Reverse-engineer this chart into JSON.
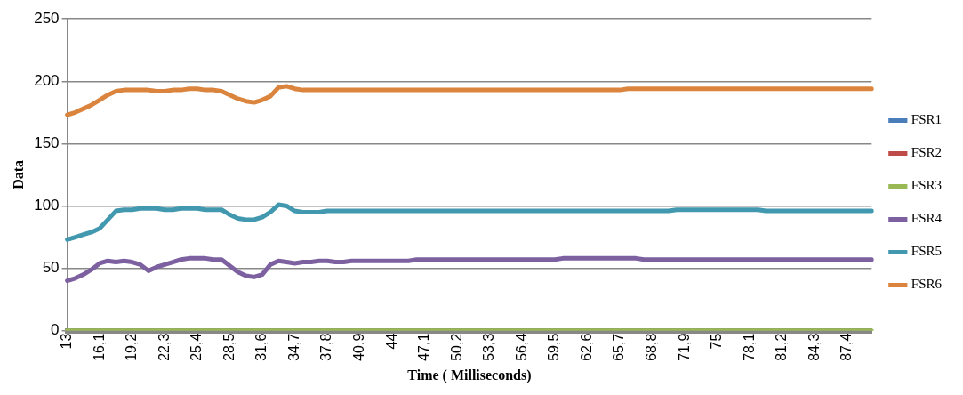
{
  "chart_data": {
    "type": "line",
    "xlabel": "Time ( Milliseconds)",
    "ylabel": "Data",
    "categories": [
      "13",
      null,
      null,
      null,
      "16,1",
      null,
      null,
      null,
      "19,2",
      null,
      null,
      null,
      "22,3",
      null,
      null,
      null,
      "25,4",
      null,
      null,
      null,
      "28,5",
      null,
      null,
      null,
      "31,6",
      null,
      null,
      null,
      "34,7",
      null,
      null,
      null,
      "37,8",
      null,
      null,
      null,
      "40,9",
      null,
      null,
      null,
      "44",
      null,
      null,
      null,
      "47,1",
      null,
      null,
      null,
      "50,2",
      null,
      null,
      null,
      "53,3",
      null,
      null,
      null,
      "56,4",
      null,
      null,
      null,
      "59,5",
      null,
      null,
      null,
      "62,6",
      null,
      null,
      null,
      "65,7",
      null,
      null,
      null,
      "68,8",
      null,
      null,
      null,
      "71,9",
      null,
      null,
      null,
      "75",
      null,
      null,
      null,
      "78,1",
      null,
      null,
      null,
      "81,2",
      null,
      null,
      null,
      "84,3",
      null,
      null,
      null,
      "87,4",
      null,
      null,
      null
    ],
    "series": [
      {
        "name": "FSR1",
        "color": "#4a7ebb",
        "values": [
          null,
          null,
          null,
          null,
          null,
          null,
          null,
          null,
          null,
          null,
          null,
          null,
          null,
          null,
          null,
          null,
          null,
          null,
          null,
          null,
          null,
          null,
          null,
          null,
          null,
          null,
          null,
          null,
          null,
          null,
          null,
          null,
          null,
          null,
          null,
          null,
          null,
          null,
          null,
          null,
          null,
          null,
          null,
          null,
          null,
          null,
          null,
          null,
          null,
          null,
          null,
          null,
          null,
          null,
          null,
          null,
          null,
          null,
          null,
          null,
          null,
          null,
          null,
          null,
          null,
          null,
          null,
          null,
          null,
          null,
          null,
          null,
          null,
          null,
          null,
          null,
          null,
          null,
          null,
          null,
          null,
          null,
          null,
          null,
          null,
          null,
          null,
          null,
          null,
          null,
          null,
          null,
          null,
          null,
          null,
          null,
          null,
          null,
          null,
          null
        ]
      },
      {
        "name": "FSR2",
        "color": "#be4b48",
        "values": [
          null,
          null,
          null,
          null,
          null,
          null,
          null,
          null,
          null,
          null,
          null,
          null,
          null,
          null,
          null,
          null,
          null,
          null,
          null,
          null,
          null,
          null,
          null,
          null,
          null,
          null,
          null,
          null,
          null,
          null,
          null,
          null,
          null,
          null,
          null,
          null,
          null,
          null,
          null,
          null,
          null,
          null,
          null,
          null,
          null,
          null,
          null,
          null,
          null,
          null,
          null,
          null,
          null,
          null,
          null,
          null,
          null,
          null,
          null,
          null,
          null,
          null,
          null,
          null,
          null,
          null,
          null,
          null,
          null,
          null,
          null,
          null,
          null,
          null,
          null,
          null,
          null,
          null,
          null,
          null,
          null,
          null,
          null,
          null,
          null,
          null,
          null,
          null,
          null,
          null,
          null,
          null,
          null,
          null,
          null,
          null,
          null,
          null,
          null,
          null
        ]
      },
      {
        "name": "FSR3",
        "color": "#98b954",
        "values": [
          0,
          0,
          0,
          0,
          0,
          0,
          0,
          0,
          0,
          0,
          0,
          0,
          0,
          0,
          0,
          0,
          0,
          0,
          0,
          0,
          0,
          0,
          0,
          0,
          0,
          0,
          0,
          0,
          0,
          0,
          0,
          0,
          0,
          0,
          0,
          0,
          0,
          0,
          0,
          0,
          0,
          0,
          0,
          0,
          0,
          0,
          0,
          0,
          0,
          0,
          0,
          0,
          0,
          0,
          0,
          0,
          0,
          0,
          0,
          0,
          0,
          0,
          0,
          0,
          0,
          0,
          0,
          0,
          0,
          0,
          0,
          0,
          0,
          0,
          0,
          0,
          0,
          0,
          0,
          0,
          0,
          0,
          0,
          0,
          0,
          0,
          0,
          0,
          0,
          0,
          0,
          0,
          0,
          0,
          0,
          0,
          0,
          0,
          0,
          0
        ]
      },
      {
        "name": "FSR4",
        "color": "#7d60a0",
        "values": [
          40,
          42,
          45,
          49,
          54,
          56,
          55,
          56,
          55,
          53,
          48,
          51,
          53,
          55,
          57,
          58,
          58,
          58,
          57,
          57,
          52,
          47,
          44,
          43,
          45,
          53,
          56,
          55,
          54,
          55,
          55,
          56,
          56,
          55,
          55,
          56,
          56,
          56,
          56,
          56,
          56,
          56,
          56,
          57,
          57,
          57,
          57,
          57,
          57,
          57,
          57,
          57,
          57,
          57,
          57,
          57,
          57,
          57,
          57,
          57,
          57,
          58,
          58,
          58,
          58,
          58,
          58,
          58,
          58,
          58,
          58,
          57,
          57,
          57,
          57,
          57,
          57,
          57,
          57,
          57,
          57,
          57,
          57,
          57,
          57,
          57,
          57,
          57,
          57,
          57,
          57,
          57,
          57,
          57,
          57,
          57,
          57,
          57,
          57,
          57
        ]
      },
      {
        "name": "FSR5",
        "color": "#4198af",
        "values": [
          73,
          75,
          77,
          79,
          82,
          89,
          96,
          97,
          97,
          98,
          98,
          98,
          97,
          97,
          98,
          98,
          98,
          97,
          97,
          97,
          93,
          90,
          89,
          89,
          91,
          95,
          101,
          100,
          96,
          95,
          95,
          95,
          96,
          96,
          96,
          96,
          96,
          96,
          96,
          96,
          96,
          96,
          96,
          96,
          96,
          96,
          96,
          96,
          96,
          96,
          96,
          96,
          96,
          96,
          96,
          96,
          96,
          96,
          96,
          96,
          96,
          96,
          96,
          96,
          96,
          96,
          96,
          96,
          96,
          96,
          96,
          96,
          96,
          96,
          96,
          97,
          97,
          97,
          97,
          97,
          97,
          97,
          97,
          97,
          97,
          97,
          96,
          96,
          96,
          96,
          96,
          96,
          96,
          96,
          96,
          96,
          96,
          96,
          96,
          96
        ]
      },
      {
        "name": "FSR6",
        "color": "#db843d",
        "values": [
          173,
          175,
          178,
          181,
          185,
          189,
          192,
          193,
          193,
          193,
          193,
          192,
          192,
          193,
          193,
          194,
          194,
          193,
          193,
          192,
          189,
          186,
          184,
          183,
          185,
          188,
          195,
          196,
          194,
          193,
          193,
          193,
          193,
          193,
          193,
          193,
          193,
          193,
          193,
          193,
          193,
          193,
          193,
          193,
          193,
          193,
          193,
          193,
          193,
          193,
          193,
          193,
          193,
          193,
          193,
          193,
          193,
          193,
          193,
          193,
          193,
          193,
          193,
          193,
          193,
          193,
          193,
          193,
          193,
          194,
          194,
          194,
          194,
          194,
          194,
          194,
          194,
          194,
          194,
          194,
          194,
          194,
          194,
          194,
          194,
          194,
          194,
          194,
          194,
          194,
          194,
          194,
          194,
          194,
          194,
          194,
          194,
          194,
          194,
          194
        ]
      }
    ],
    "ylim": [
      0,
      250
    ],
    "yticks": [
      0,
      50,
      100,
      150,
      200,
      250
    ],
    "grid": "y",
    "legend": "right",
    "marker": "none",
    "line_style": "solid"
  }
}
